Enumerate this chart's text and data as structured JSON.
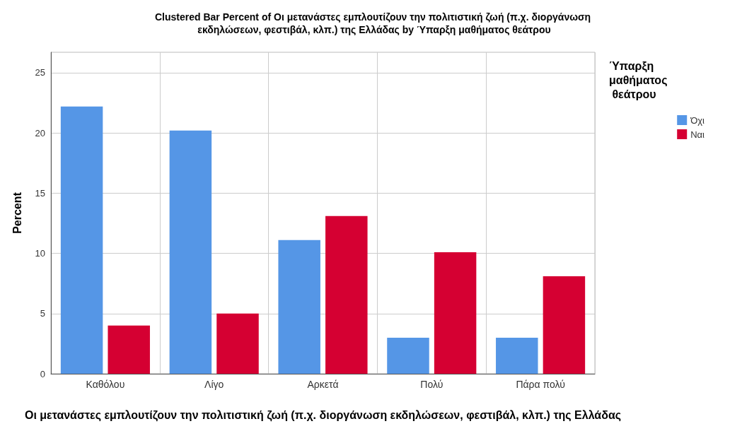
{
  "chart_data": {
    "type": "bar",
    "title": "Clustered Bar Percent of Οι μετανάστες εμπλουτίζουν την πολιτιστική ζωή (π.χ. διοργάνωση εκδηλώσεων, φεστιβάλ, κλπ.) της Ελλάδας by Ύπαρξη μαθήματος θεάτρου",
    "xlabel": "Οι μετανάστες εμπλουτίζουν την πολιτιστική ζωή (π.χ. διοργάνωση εκδηλώσεων, φεστιβάλ, κλπ.) της Ελλάδας",
    "ylabel": "Percent",
    "legend_title": "Ύπαρξη μαθήματος θεάτρου",
    "categories": [
      "Καθόλου",
      "Λίγο",
      "Αρκετά",
      "Πολύ",
      "Πάρα πολύ"
    ],
    "series": [
      {
        "name": "Όχι",
        "color": "#5596e6",
        "values": [
          22.2,
          20.2,
          11.1,
          3.0,
          3.0
        ]
      },
      {
        "name": "Ναι",
        "color": "#d50032",
        "values": [
          4.0,
          5.0,
          13.1,
          10.1,
          8.1
        ]
      }
    ],
    "ylim": [
      0,
      26.7
    ],
    "yticks": [
      0,
      5,
      10,
      15,
      20,
      25
    ],
    "grid": true,
    "legend": "top right"
  }
}
